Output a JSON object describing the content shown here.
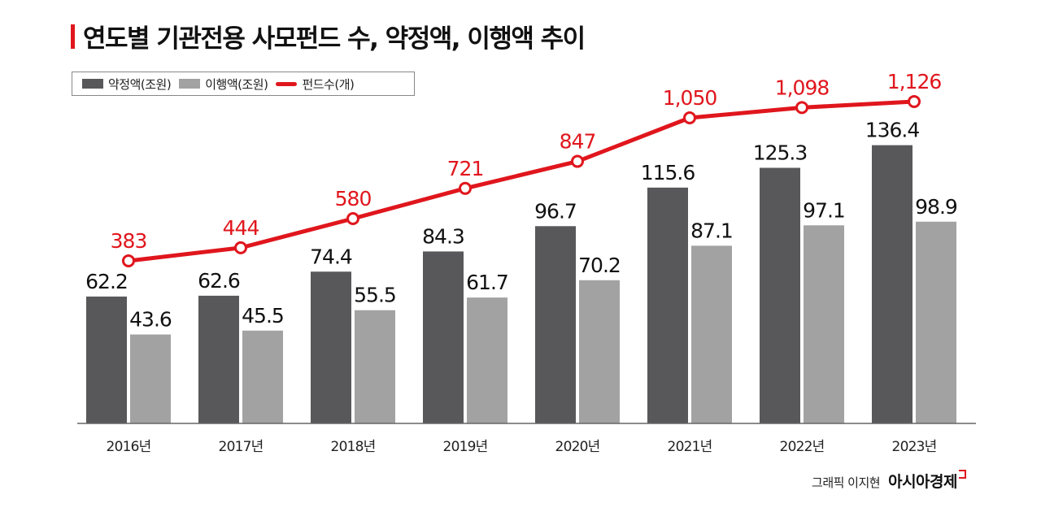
{
  "chart_data": {
    "type": "bar",
    "title": "연도별 기관전용 사모펀드 수, 약정액, 이행액 추이",
    "categories": [
      "2016년",
      "2017년",
      "2018년",
      "2019년",
      "2020년",
      "2021년",
      "2022년",
      "2023년"
    ],
    "series": [
      {
        "name": "약정액(조원)",
        "kind": "bar",
        "color": "#58585a",
        "values": [
          62.2,
          62.6,
          74.4,
          84.3,
          96.7,
          115.6,
          125.3,
          136.4
        ],
        "labels": [
          "62.2",
          "62.6",
          "74.4",
          "84.3",
          "96.7",
          "115.6",
          "125.3",
          "136.4"
        ]
      },
      {
        "name": "이행액(조원)",
        "kind": "bar",
        "color": "#a2a2a2",
        "values": [
          43.6,
          45.5,
          55.5,
          61.7,
          70.2,
          87.1,
          97.1,
          98.9
        ],
        "labels": [
          "43.6",
          "45.5",
          "55.5",
          "61.7",
          "70.2",
          "87.1",
          "97.1",
          "98.9"
        ]
      },
      {
        "name": "펀드수(개)",
        "kind": "line",
        "color": "#e0161d",
        "values": [
          383,
          444,
          580,
          721,
          847,
          1050,
          1098,
          1126
        ],
        "labels": [
          "383",
          "444",
          "580",
          "721",
          "847",
          "1,050",
          "1,098",
          "1,126"
        ]
      }
    ],
    "legend": "top-left",
    "grid": false
  },
  "credit": {
    "text": "그래픽 이지현",
    "brand": "아시아경제"
  }
}
